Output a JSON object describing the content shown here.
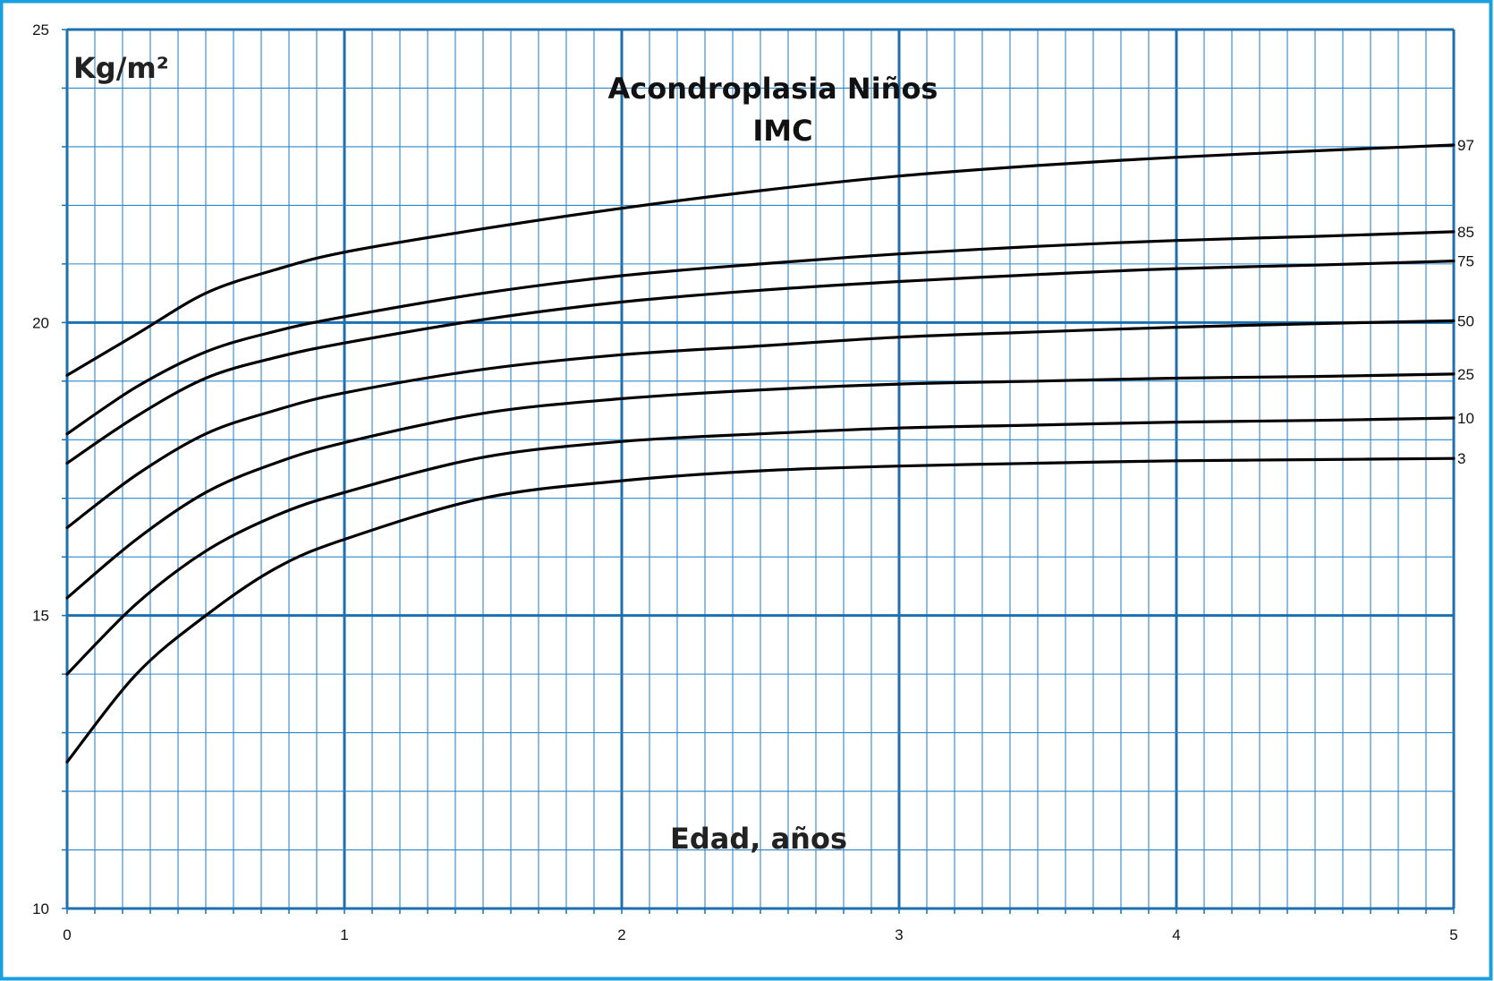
{
  "chart_data": {
    "type": "line",
    "title": "Acondroplasia  Niños",
    "subtitle": "IMC",
    "xlabel": "Edad, años",
    "ylabel": "Kg/m²",
    "xlim": [
      0,
      5
    ],
    "ylim": [
      10,
      25
    ],
    "x_ticks": [
      "0",
      "1",
      "2",
      "3",
      "4",
      "5"
    ],
    "y_ticks": [
      "10",
      "15",
      "20",
      "25"
    ],
    "grid": true,
    "colors": {
      "frame": "#1aa0dc",
      "grid_major": "#1e6fb0",
      "grid_minor": "#2e86c8",
      "line": "#000000"
    },
    "x": [
      0,
      0.25,
      0.5,
      0.75,
      1,
      1.5,
      2,
      2.5,
      3,
      3.5,
      4,
      4.5,
      5
    ],
    "series": [
      {
        "name": "97",
        "values": [
          19.1,
          19.8,
          20.5,
          20.9,
          21.2,
          21.6,
          21.95,
          22.25,
          22.5,
          22.68,
          22.82,
          22.93,
          23.03
        ]
      },
      {
        "name": "85",
        "values": [
          18.1,
          18.9,
          19.5,
          19.85,
          20.1,
          20.5,
          20.8,
          21.0,
          21.17,
          21.3,
          21.4,
          21.47,
          21.55
        ]
      },
      {
        "name": "75",
        "values": [
          17.6,
          18.4,
          19.05,
          19.4,
          19.65,
          20.05,
          20.35,
          20.55,
          20.7,
          20.82,
          20.92,
          20.98,
          21.05
        ]
      },
      {
        "name": "50",
        "values": [
          16.5,
          17.4,
          18.1,
          18.5,
          18.8,
          19.2,
          19.45,
          19.6,
          19.75,
          19.84,
          19.92,
          19.98,
          20.03
        ]
      },
      {
        "name": "25",
        "values": [
          15.3,
          16.3,
          17.1,
          17.6,
          17.95,
          18.45,
          18.7,
          18.85,
          18.95,
          19.0,
          19.05,
          19.08,
          19.12
        ]
      },
      {
        "name": "10",
        "values": [
          14.0,
          15.2,
          16.1,
          16.7,
          17.1,
          17.7,
          17.97,
          18.1,
          18.2,
          18.25,
          18.3,
          18.33,
          18.37
        ]
      },
      {
        "name": "3",
        "values": [
          12.5,
          14.0,
          15.0,
          15.8,
          16.3,
          17.0,
          17.3,
          17.47,
          17.55,
          17.6,
          17.64,
          17.66,
          17.68
        ]
      }
    ]
  }
}
